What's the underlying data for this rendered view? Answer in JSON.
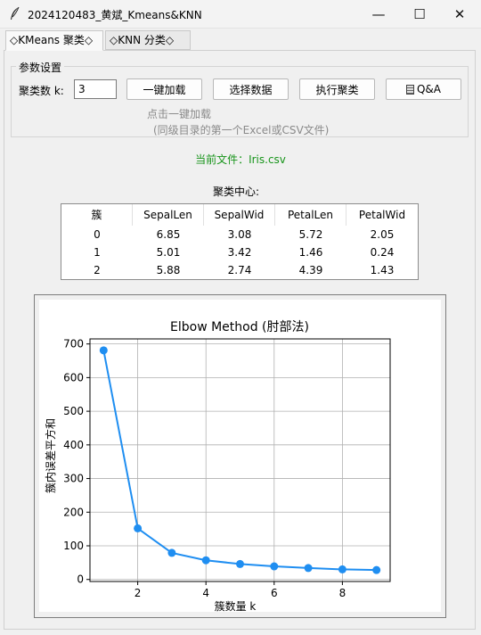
{
  "window": {
    "title": "2024120483_黄斌_Kmeans&KNN",
    "minimize_glyph": "—",
    "maximize_glyph": "☐",
    "close_glyph": "✕"
  },
  "tabs": [
    {
      "label": "◇KMeans 聚类◇",
      "active": true
    },
    {
      "label": "◇KNN 分类◇",
      "active": false
    }
  ],
  "params": {
    "group_title": "参数设置",
    "k_label": "聚类数 k:",
    "k_value": "3",
    "buttons": {
      "load": "一键加载",
      "select": "选择数据",
      "run": "执行聚类",
      "qa": "Q&A"
    },
    "hint_line1": "点击一键加载",
    "hint_line2": "(同级目录的第一个Excel或CSV文件)"
  },
  "current_file": "当前文件：Iris.csv",
  "centers": {
    "title": "聚类中心:",
    "headers": [
      "簇",
      "SepalLen",
      "SepalWid",
      "PetalLen",
      "PetalWid"
    ],
    "rows": [
      [
        "0",
        "6.85",
        "3.08",
        "5.72",
        "2.05"
      ],
      [
        "1",
        "5.01",
        "3.42",
        "1.46",
        "0.24"
      ],
      [
        "2",
        "5.88",
        "2.74",
        "4.39",
        "1.43"
      ]
    ]
  },
  "colors": {
    "accent": "#1f8ef1",
    "file_text": "#17941a",
    "hint_text": "#8a8a8a"
  },
  "chart_data": {
    "type": "line",
    "title": "Elbow Method (肘部法)",
    "xlabel": "簇数量 k",
    "ylabel": "簇内误差平方和",
    "x": [
      1,
      2,
      3,
      4,
      5,
      6,
      7,
      8,
      9
    ],
    "series": [
      {
        "values": [
          681,
          152,
          79,
          57,
          46,
          39,
          34,
          30,
          28
        ]
      }
    ],
    "xlim": [
      0.6,
      9.4
    ],
    "ylim": [
      -6,
      715
    ],
    "xticks": [
      2,
      4,
      6,
      8
    ],
    "yticks": [
      0,
      100,
      200,
      300,
      400,
      500,
      600,
      700
    ],
    "grid": true,
    "marker": "circle"
  }
}
